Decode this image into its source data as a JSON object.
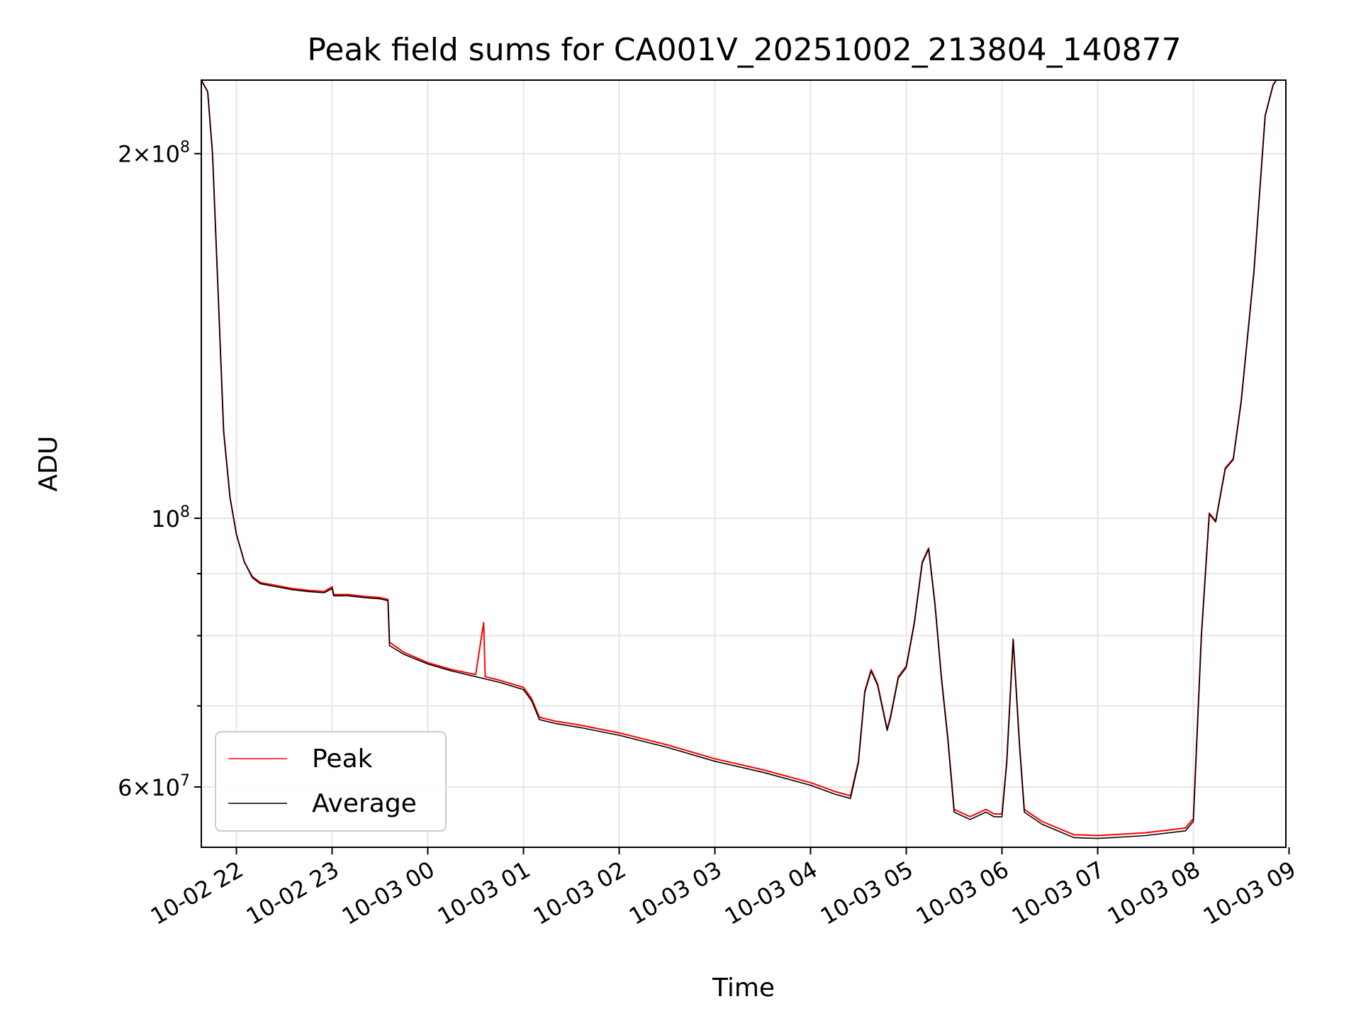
{
  "chart_data": {
    "type": "line",
    "title": "Peak field sums for CA001V_20251002_213804_140877",
    "xlabel": "Time",
    "ylabel": "ADU",
    "x_range": [
      "2025-10-02 21:38",
      "2025-10-03 08:58"
    ],
    "ylim": [
      53500000,
      230000000
    ],
    "yscale": "log",
    "grid": true,
    "legend_position": "lower-left",
    "x_ticks": [
      {
        "label": "10-02 22",
        "t": "2025-10-02 22:00"
      },
      {
        "label": "10-02 23",
        "t": "2025-10-02 23:00"
      },
      {
        "label": "10-03 00",
        "t": "2025-10-03 00:00"
      },
      {
        "label": "10-03 01",
        "t": "2025-10-03 01:00"
      },
      {
        "label": "10-03 02",
        "t": "2025-10-03 02:00"
      },
      {
        "label": "10-03 03",
        "t": "2025-10-03 03:00"
      },
      {
        "label": "10-03 04",
        "t": "2025-10-03 04:00"
      },
      {
        "label": "10-03 05",
        "t": "2025-10-03 05:00"
      },
      {
        "label": "10-03 06",
        "t": "2025-10-03 06:00"
      },
      {
        "label": "10-03 07",
        "t": "2025-10-03 07:00"
      },
      {
        "label": "10-03 08",
        "t": "2025-10-03 08:00"
      },
      {
        "label": "10-03 09",
        "t": "2025-10-03 09:00"
      }
    ],
    "y_ticks_major": [
      {
        "value": 60000000,
        "mant": "6",
        "exp": "7"
      },
      {
        "value": 100000000,
        "mant": "",
        "exp": "8"
      },
      {
        "value": 200000000,
        "mant": "2",
        "exp": "8"
      }
    ],
    "y_ticks_minor": [
      70000000,
      80000000,
      90000000
    ],
    "series": [
      {
        "name": "Peak",
        "color": "#ff0000",
        "points": [
          [
            "2025-10-02 21:38",
            230000000
          ],
          [
            "2025-10-02 21:42",
            225000000
          ],
          [
            "2025-10-02 21:45",
            200000000
          ],
          [
            "2025-10-02 21:48",
            160000000
          ],
          [
            "2025-10-02 21:52",
            118000000
          ],
          [
            "2025-10-02 21:56",
            104000000
          ],
          [
            "2025-10-02 22:00",
            97000000
          ],
          [
            "2025-10-02 22:05",
            92000000
          ],
          [
            "2025-10-02 22:10",
            89500000
          ],
          [
            "2025-10-02 22:15",
            88500000
          ],
          [
            "2025-10-02 22:25",
            88000000
          ],
          [
            "2025-10-02 22:35",
            87500000
          ],
          [
            "2025-10-02 22:45",
            87200000
          ],
          [
            "2025-10-02 22:55",
            87000000
          ],
          [
            "2025-10-02 23:00",
            87800000
          ],
          [
            "2025-10-02 23:01",
            86500000
          ],
          [
            "2025-10-02 23:10",
            86500000
          ],
          [
            "2025-10-02 23:20",
            86200000
          ],
          [
            "2025-10-02 23:30",
            86000000
          ],
          [
            "2025-10-02 23:35",
            85700000
          ],
          [
            "2025-10-02 23:36",
            79000000
          ],
          [
            "2025-10-02 23:45",
            77500000
          ],
          [
            "2025-10-03 00:00",
            76000000
          ],
          [
            "2025-10-03 00:15",
            75000000
          ],
          [
            "2025-10-03 00:30",
            74300000
          ],
          [
            "2025-10-03 00:35",
            82000000
          ],
          [
            "2025-10-03 00:36",
            74000000
          ],
          [
            "2025-10-03 00:45",
            73500000
          ],
          [
            "2025-10-03 01:00",
            72500000
          ],
          [
            "2025-10-03 01:05",
            71000000
          ],
          [
            "2025-10-03 01:10",
            68500000
          ],
          [
            "2025-10-03 01:20",
            68000000
          ],
          [
            "2025-10-03 01:35",
            67500000
          ],
          [
            "2025-10-03 02:00",
            66500000
          ],
          [
            "2025-10-03 02:30",
            65000000
          ],
          [
            "2025-10-03 03:00",
            63300000
          ],
          [
            "2025-10-03 03:30",
            62000000
          ],
          [
            "2025-10-03 04:00",
            60500000
          ],
          [
            "2025-10-03 04:15",
            59500000
          ],
          [
            "2025-10-03 04:25",
            59000000
          ],
          [
            "2025-10-03 04:30",
            63000000
          ],
          [
            "2025-10-03 04:34",
            72000000
          ],
          [
            "2025-10-03 04:38",
            75000000
          ],
          [
            "2025-10-03 04:42",
            73000000
          ],
          [
            "2025-10-03 04:48",
            67000000
          ],
          [
            "2025-10-03 04:50",
            68500000
          ],
          [
            "2025-10-03 04:55",
            74000000
          ],
          [
            "2025-10-03 05:00",
            75500000
          ],
          [
            "2025-10-03 05:05",
            82000000
          ],
          [
            "2025-10-03 05:10",
            92000000
          ],
          [
            "2025-10-03 05:14",
            94500000
          ],
          [
            "2025-10-03 05:18",
            85000000
          ],
          [
            "2025-10-03 05:22",
            74000000
          ],
          [
            "2025-10-03 05:26",
            66000000
          ],
          [
            "2025-10-03 05:30",
            57500000
          ],
          [
            "2025-10-03 05:40",
            56700000
          ],
          [
            "2025-10-03 05:50",
            57500000
          ],
          [
            "2025-10-03 05:55",
            57000000
          ],
          [
            "2025-10-03 06:00",
            57000000
          ],
          [
            "2025-10-03 06:03",
            63000000
          ],
          [
            "2025-10-03 06:07",
            79500000
          ],
          [
            "2025-10-03 06:11",
            65000000
          ],
          [
            "2025-10-03 06:14",
            57500000
          ],
          [
            "2025-10-03 06:25",
            56200000
          ],
          [
            "2025-10-03 06:45",
            54800000
          ],
          [
            "2025-10-03 07:00",
            54700000
          ],
          [
            "2025-10-03 07:30",
            55000000
          ],
          [
            "2025-10-03 07:55",
            55500000
          ],
          [
            "2025-10-03 08:00",
            56500000
          ],
          [
            "2025-10-03 08:05",
            80000000
          ],
          [
            "2025-10-03 08:10",
            101000000
          ],
          [
            "2025-10-03 08:14",
            99500000
          ],
          [
            "2025-10-03 08:20",
            110000000
          ],
          [
            "2025-10-03 08:25",
            112000000
          ],
          [
            "2025-10-03 08:30",
            125000000
          ],
          [
            "2025-10-03 08:38",
            160000000
          ],
          [
            "2025-10-03 08:45",
            215000000
          ],
          [
            "2025-10-03 08:50",
            228000000
          ],
          [
            "2025-10-03 08:52",
            230000000
          ]
        ]
      },
      {
        "name": "Average",
        "color": "#000000",
        "points": [
          [
            "2025-10-02 21:38",
            230000000
          ],
          [
            "2025-10-02 21:42",
            225000000
          ],
          [
            "2025-10-02 21:45",
            200000000
          ],
          [
            "2025-10-02 21:48",
            160000000
          ],
          [
            "2025-10-02 21:52",
            118000000
          ],
          [
            "2025-10-02 21:56",
            104000000
          ],
          [
            "2025-10-02 22:00",
            97000000
          ],
          [
            "2025-10-02 22:05",
            92000000
          ],
          [
            "2025-10-02 22:10",
            89300000
          ],
          [
            "2025-10-02 22:15",
            88300000
          ],
          [
            "2025-10-02 22:25",
            87800000
          ],
          [
            "2025-10-02 22:35",
            87300000
          ],
          [
            "2025-10-02 22:45",
            87000000
          ],
          [
            "2025-10-02 22:55",
            86800000
          ],
          [
            "2025-10-02 23:00",
            87500000
          ],
          [
            "2025-10-02 23:01",
            86300000
          ],
          [
            "2025-10-02 23:10",
            86300000
          ],
          [
            "2025-10-02 23:20",
            86000000
          ],
          [
            "2025-10-02 23:30",
            85800000
          ],
          [
            "2025-10-02 23:35",
            85500000
          ],
          [
            "2025-10-02 23:36",
            78500000
          ],
          [
            "2025-10-02 23:45",
            77200000
          ],
          [
            "2025-10-03 00:00",
            75800000
          ],
          [
            "2025-10-03 00:15",
            74800000
          ],
          [
            "2025-10-03 00:30",
            74000000
          ],
          [
            "2025-10-03 00:45",
            73200000
          ],
          [
            "2025-10-03 01:00",
            72200000
          ],
          [
            "2025-10-03 01:05",
            70700000
          ],
          [
            "2025-10-03 01:10",
            68200000
          ],
          [
            "2025-10-03 01:20",
            67700000
          ],
          [
            "2025-10-03 01:35",
            67200000
          ],
          [
            "2025-10-03 02:00",
            66200000
          ],
          [
            "2025-10-03 02:30",
            64700000
          ],
          [
            "2025-10-03 03:00",
            63000000
          ],
          [
            "2025-10-03 03:30",
            61700000
          ],
          [
            "2025-10-03 04:00",
            60200000
          ],
          [
            "2025-10-03 04:15",
            59200000
          ],
          [
            "2025-10-03 04:25",
            58700000
          ],
          [
            "2025-10-03 04:30",
            62800000
          ],
          [
            "2025-10-03 04:34",
            71800000
          ],
          [
            "2025-10-03 04:38",
            74800000
          ],
          [
            "2025-10-03 04:42",
            72800000
          ],
          [
            "2025-10-03 04:48",
            66800000
          ],
          [
            "2025-10-03 04:50",
            68300000
          ],
          [
            "2025-10-03 04:55",
            73800000
          ],
          [
            "2025-10-03 05:00",
            75300000
          ],
          [
            "2025-10-03 05:05",
            81800000
          ],
          [
            "2025-10-03 05:10",
            91800000
          ],
          [
            "2025-10-03 05:14",
            94300000
          ],
          [
            "2025-10-03 05:18",
            84800000
          ],
          [
            "2025-10-03 05:22",
            73800000
          ],
          [
            "2025-10-03 05:26",
            65800000
          ],
          [
            "2025-10-03 05:30",
            57200000
          ],
          [
            "2025-10-03 05:40",
            56400000
          ],
          [
            "2025-10-03 05:50",
            57200000
          ],
          [
            "2025-10-03 05:55",
            56700000
          ],
          [
            "2025-10-03 06:00",
            56700000
          ],
          [
            "2025-10-03 06:03",
            62800000
          ],
          [
            "2025-10-03 06:07",
            79300000
          ],
          [
            "2025-10-03 06:11",
            64800000
          ],
          [
            "2025-10-03 06:14",
            57200000
          ],
          [
            "2025-10-03 06:25",
            55900000
          ],
          [
            "2025-10-03 06:45",
            54500000
          ],
          [
            "2025-10-03 07:00",
            54400000
          ],
          [
            "2025-10-03 07:30",
            54700000
          ],
          [
            "2025-10-03 07:55",
            55200000
          ],
          [
            "2025-10-03 08:00",
            56200000
          ],
          [
            "2025-10-03 08:05",
            79800000
          ],
          [
            "2025-10-03 08:10",
            100800000
          ],
          [
            "2025-10-03 08:14",
            99300000
          ],
          [
            "2025-10-03 08:20",
            109800000
          ],
          [
            "2025-10-03 08:25",
            111800000
          ],
          [
            "2025-10-03 08:30",
            124800000
          ],
          [
            "2025-10-03 08:38",
            159800000
          ],
          [
            "2025-10-03 08:45",
            214800000
          ],
          [
            "2025-10-03 08:50",
            227800000
          ],
          [
            "2025-10-03 08:52",
            230000000
          ]
        ]
      }
    ]
  }
}
